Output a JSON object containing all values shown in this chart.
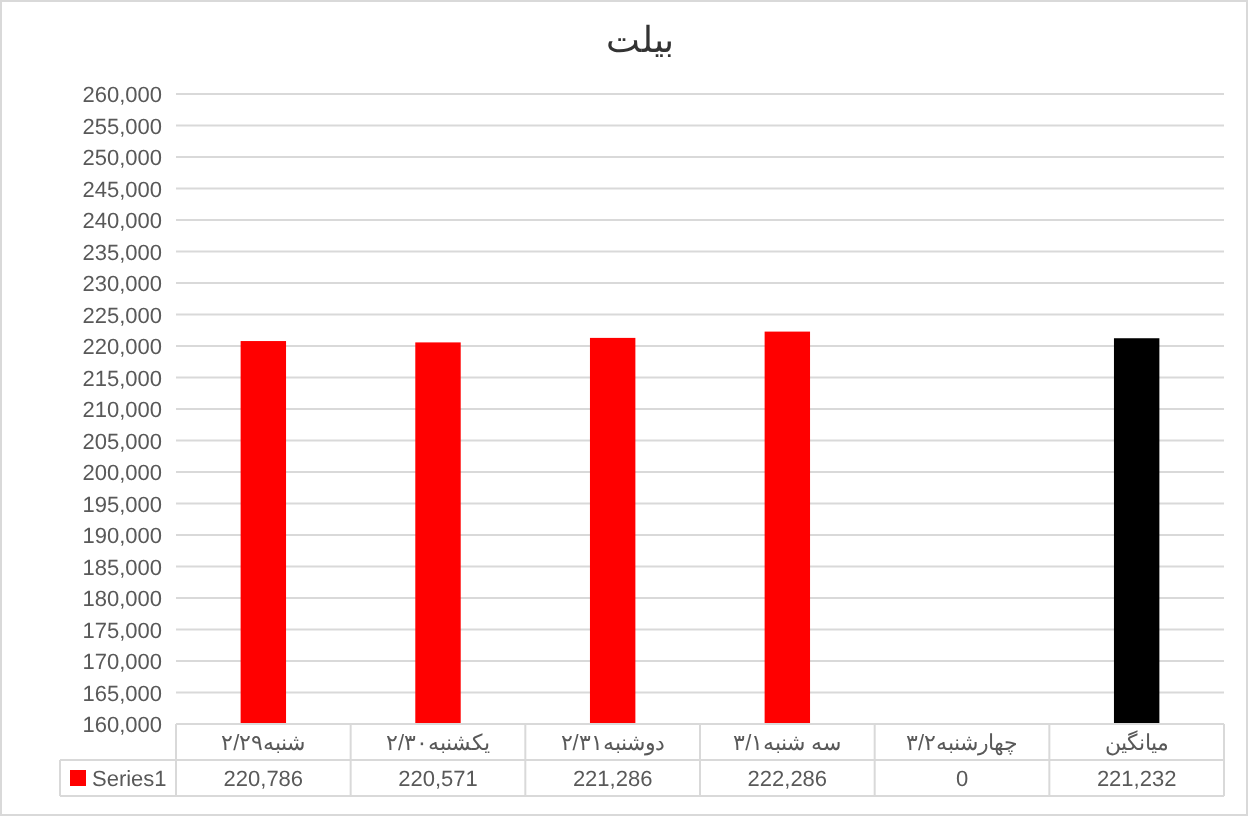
{
  "chart_data": {
    "type": "bar",
    "title": "بیلت",
    "categories": [
      "شنبه۲/۲۹",
      "یکشنبه۲/۳۰",
      "دوشنبه۲/۳۱",
      "سه شنبه۳/۱",
      "چهارشنبه۳/۲",
      "میانگین"
    ],
    "series": [
      {
        "name": "Series1",
        "color": "#ff0000",
        "colors": [
          "#ff0000",
          "#ff0000",
          "#ff0000",
          "#ff0000",
          null,
          "#000000"
        ],
        "values": [
          220786,
          220571,
          221286,
          222286,
          null,
          221232
        ],
        "value_labels": [
          "220,786",
          "220,571",
          "221,286",
          "222,286",
          "0",
          "221,232"
        ]
      }
    ],
    "ylim": [
      160000,
      260000
    ],
    "yticks": [
      {
        "value": 160000,
        "label": "160,000"
      },
      {
        "value": 165000,
        "label": "165,000"
      },
      {
        "value": 170000,
        "label": "170,000"
      },
      {
        "value": 175000,
        "label": "175,000"
      },
      {
        "value": 180000,
        "label": "180,000"
      },
      {
        "value": 185000,
        "label": "185,000"
      },
      {
        "value": 190000,
        "label": "190,000"
      },
      {
        "value": 195000,
        "label": "195,000"
      },
      {
        "value": 200000,
        "label": "200,000"
      },
      {
        "value": 205000,
        "label": "205,000"
      },
      {
        "value": 210000,
        "label": "210,000"
      },
      {
        "value": 215000,
        "label": "215,000"
      },
      {
        "value": 220000,
        "label": "220,000"
      },
      {
        "value": 225000,
        "label": "225,000"
      },
      {
        "value": 230000,
        "label": "230,000"
      },
      {
        "value": 235000,
        "label": "235,000"
      },
      {
        "value": 240000,
        "label": "240,000"
      },
      {
        "value": 245000,
        "label": "245,000"
      },
      {
        "value": 250000,
        "label": "250,000"
      },
      {
        "value": 255000,
        "label": "255,000"
      },
      {
        "value": 260000,
        "label": "260,000"
      }
    ],
    "grid": "y",
    "legend": "bottom"
  }
}
